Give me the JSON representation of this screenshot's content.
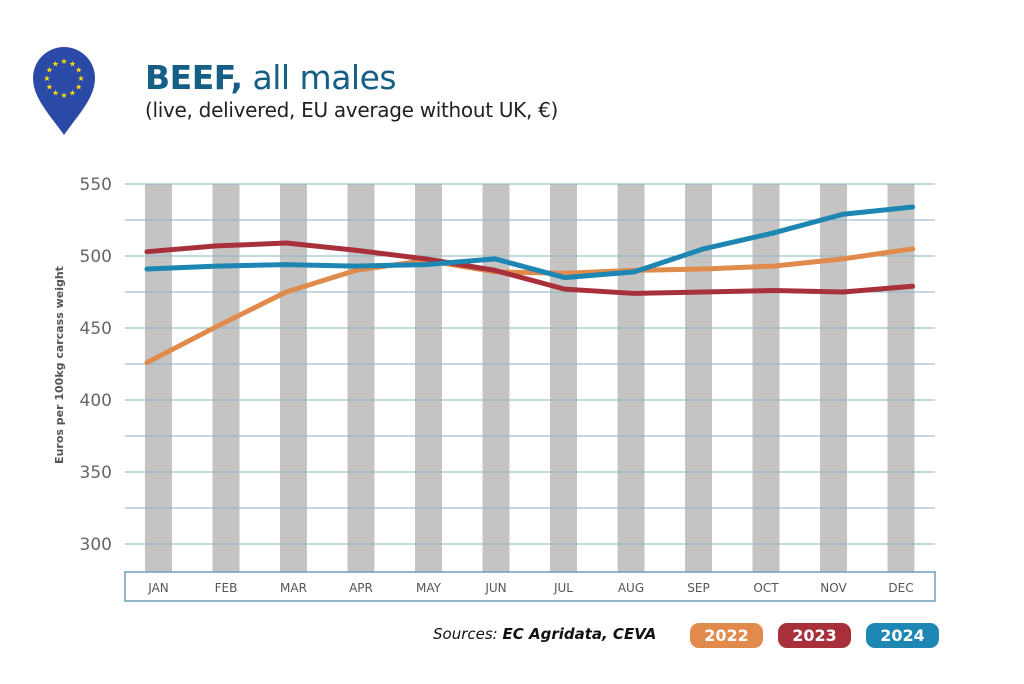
{
  "header": {
    "title_bold": "BEEF,",
    "title_rest": " all males",
    "subtitle": "(live, delivered, EU average without UK, €)",
    "logo_icon": "eu-flag-map-pin-icon"
  },
  "footer": {
    "sources_label": "Sources: ",
    "sources_value": "EC Agridata, CEVA"
  },
  "chart_data": {
    "type": "line",
    "title": "",
    "xlabel": "",
    "ylabel": "Euros per 100kg carcass weight",
    "ylim": [
      300,
      550
    ],
    "yticks": [
      "300",
      "350",
      "400",
      "450",
      "500",
      "550"
    ],
    "grid": true,
    "legend_position": "bottom-right",
    "categories": [
      "JAN",
      "FEB",
      "MAR",
      "APR",
      "MAY",
      "JUN",
      "JUL",
      "AUG",
      "SEP",
      "OCT",
      "NOV",
      "DEC"
    ],
    "series": [
      {
        "name": "2022",
        "color": "#e08b4c",
        "values": [
          426,
          451,
          475,
          490,
          497,
          489,
          488,
          490,
          491,
          493,
          498,
          505
        ]
      },
      {
        "name": "2023",
        "color": "#a8303a",
        "values": [
          503,
          507,
          509,
          504,
          498,
          490,
          477,
          474,
          475,
          476,
          475,
          479
        ]
      },
      {
        "name": "2024",
        "color": "#1e86b3",
        "values": [
          491,
          493,
          494,
          493,
          494,
          498,
          485,
          489,
          505,
          516,
          529,
          534
        ]
      }
    ]
  }
}
